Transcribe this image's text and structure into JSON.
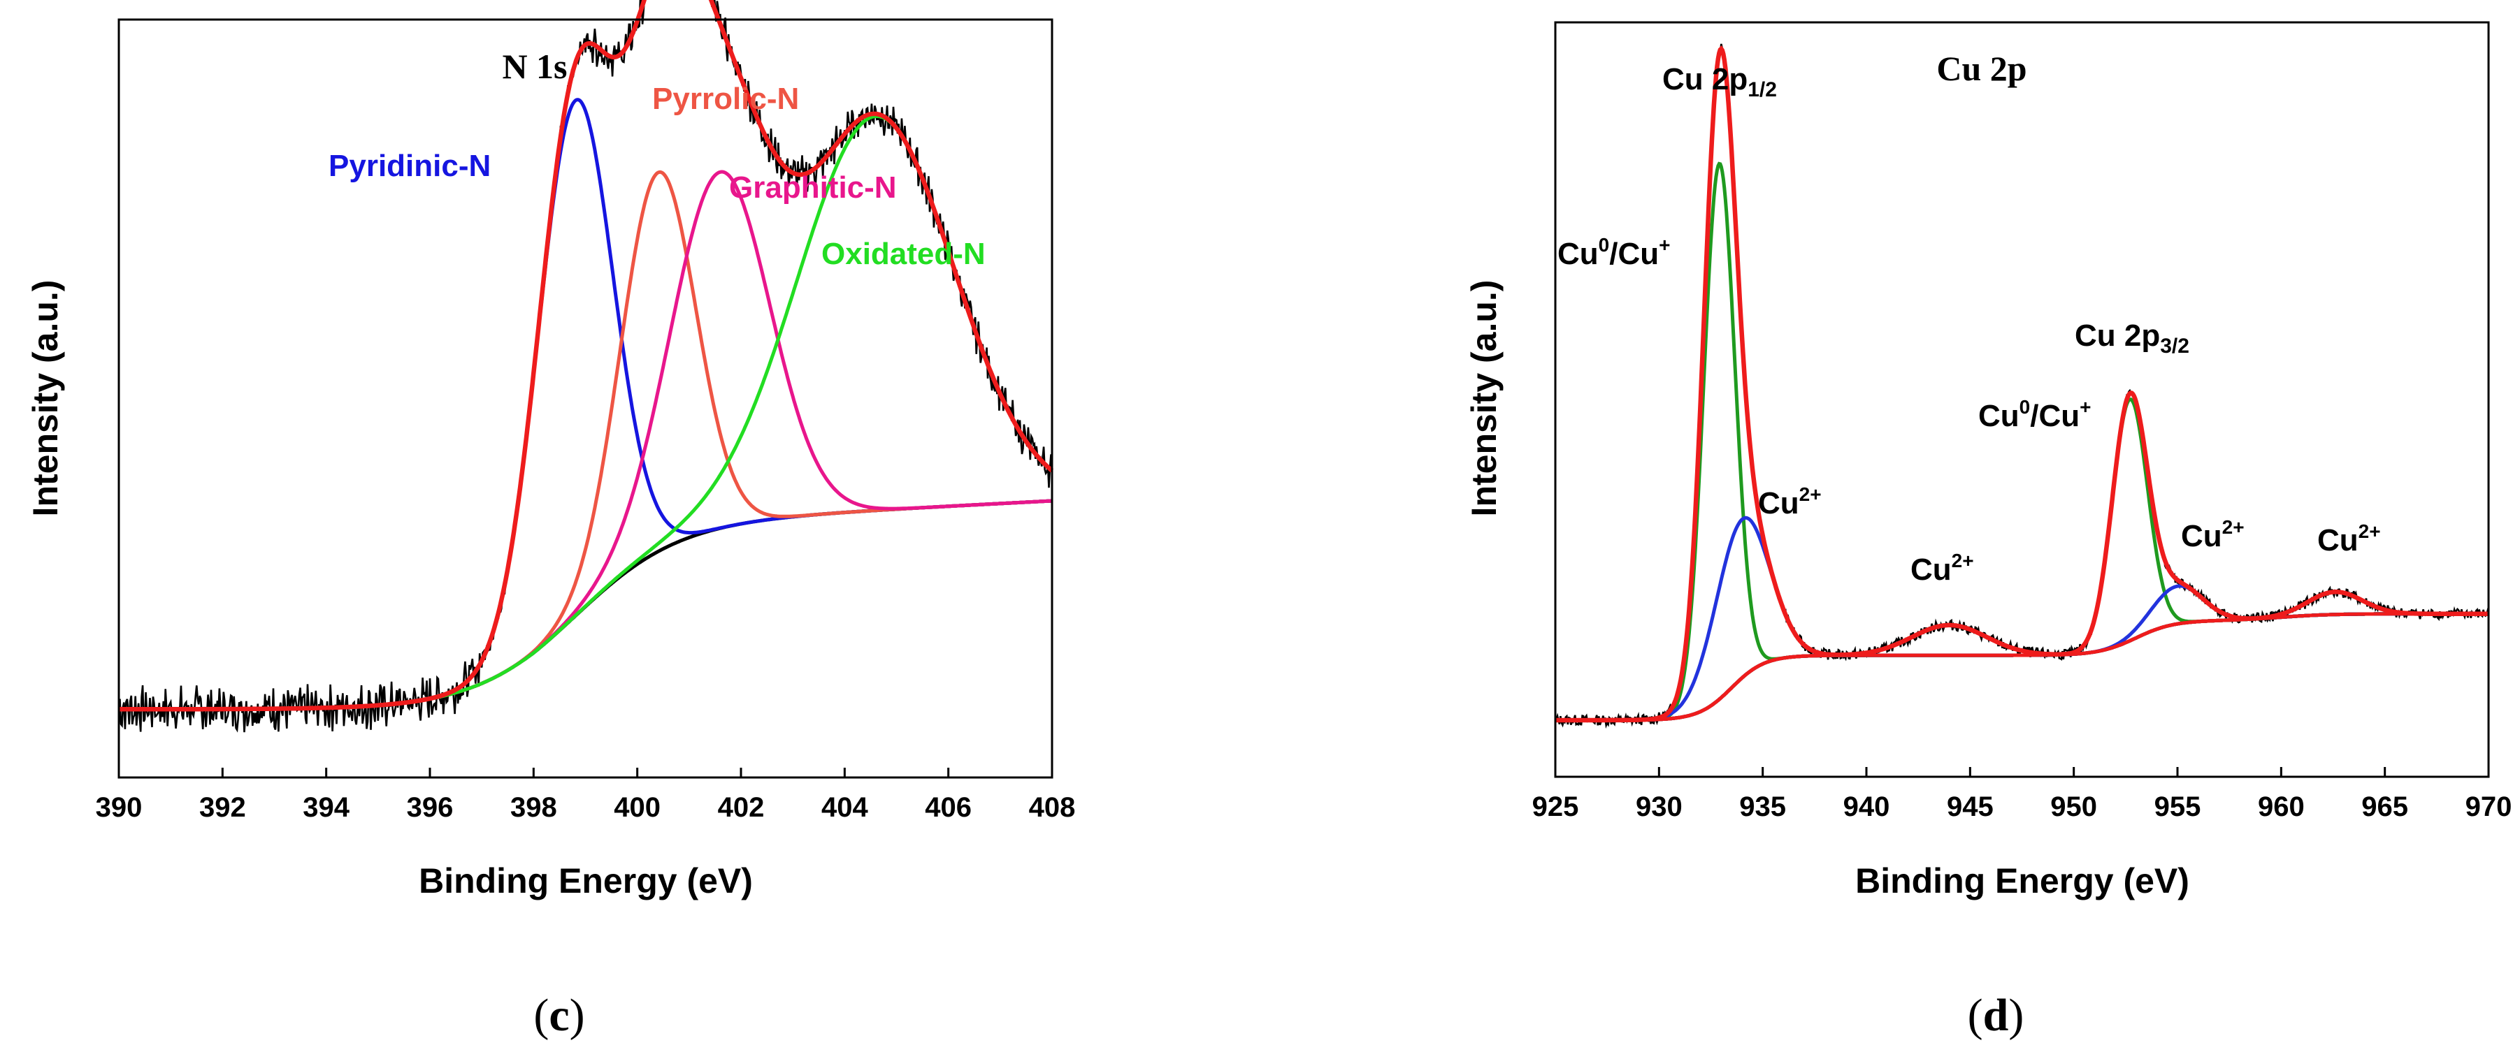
{
  "colors": {
    "raw": "#000000",
    "fit": "#ee1c1c",
    "background": "#000000",
    "blue": "#1515e0",
    "orange": "#ee5544",
    "pink": "#e8168c",
    "lime": "#22dd22",
    "green": "#1f9a1f",
    "blue2": "#2233dd"
  },
  "chart_data": [
    {
      "type": "line",
      "panel_label": "c",
      "title": "N 1s",
      "xlabel": "Binding Energy (eV)",
      "ylabel": "Intensity (a.u.)",
      "xlim": [
        390,
        408
      ],
      "ylim": [
        0,
        100
      ],
      "xticks": [
        390,
        392,
        394,
        396,
        398,
        400,
        402,
        404,
        406,
        408
      ],
      "series": [
        {
          "name": "Pyridinic-N",
          "color": "#1515e0",
          "center": 398.8,
          "sigma": 0.72,
          "height": 68
        },
        {
          "name": "Pyrrolic-N",
          "color": "#ee5544",
          "center": 400.4,
          "sigma": 0.72,
          "height": 50
        },
        {
          "name": "Graphitic-N",
          "color": "#e8168c",
          "center": 401.6,
          "sigma": 0.95,
          "height": 47
        },
        {
          "name": "Oxidated-N",
          "color": "#22dd22",
          "center": 404.6,
          "sigma": 1.5,
          "height": 52
        }
      ],
      "background_curve": {
        "step_center": 398.8,
        "step_width": 1.0,
        "step_height": 24,
        "slope": 3.5,
        "base": 9
      },
      "annotations": [
        {
          "text": "Pyridinic-N",
          "color": "#1515e0"
        },
        {
          "text": "Pyrrolic-N",
          "color": "#ee5544"
        },
        {
          "text": "Graphitic-N",
          "color": "#e8168c"
        },
        {
          "text": "Oxidated-N",
          "color": "#22dd22"
        }
      ]
    },
    {
      "type": "line",
      "panel_label": "d",
      "title": "Cu 2p",
      "xlabel": "Binding Energy (eV)",
      "ylabel": "Intensity (a.u.)",
      "xlim": [
        925,
        970
      ],
      "ylim": [
        0,
        100
      ],
      "xticks": [
        925,
        930,
        935,
        940,
        945,
        950,
        955,
        960,
        965,
        970
      ],
      "series": [
        {
          "name": "Cu0/Cu+ 2p1/2",
          "color": "#1f9a1f",
          "center": 932.9,
          "sigma": 0.75,
          "height": 71
        },
        {
          "name": "Cu2+ 2p1/2",
          "color": "#2233dd",
          "center": 934.0,
          "sigma": 1.3,
          "height": 21
        },
        {
          "name": "Cu0/Cu+ 2p3/2",
          "color": "#1f9a1f",
          "center": 952.7,
          "sigma": 0.85,
          "height": 32
        },
        {
          "name": "Cu2+ 2p3/2",
          "color": "#2233dd",
          "center": 955.0,
          "sigma": 1.2,
          "height": 5
        },
        {
          "name": "Cu2+ satellite 1",
          "color": "#ee1c1c",
          "center": 944.0,
          "sigma": 1.8,
          "height": 4
        },
        {
          "name": "Cu2+ satellite 2",
          "color": "#ee1c1c",
          "center": 962.6,
          "sigma": 1.3,
          "height": 3
        }
      ],
      "background_curve": {
        "b0": 7.5,
        "b1": 8.6,
        "step1": 933.5,
        "s2": 4.6,
        "step2": 953,
        "c2": 0.9,
        "step3": 960
      },
      "annotations": [
        {
          "base": "Cu 2p",
          "sub": "1/2",
          "sup": ""
        },
        {
          "base": "Cu",
          "sup": "0",
          "mid": "/Cu",
          "sup2": "+"
        },
        {
          "base": "Cu",
          "sup": "2+"
        },
        {
          "base": "Cu",
          "sup": "2+"
        },
        {
          "base": "Cu 2p",
          "sub": "3/2",
          "sup": ""
        },
        {
          "base": "Cu",
          "sup": "0",
          "mid": "/Cu",
          "sup2": "+"
        },
        {
          "base": "Cu",
          "sup": "2+"
        },
        {
          "base": "Cu",
          "sup": "2+"
        }
      ]
    }
  ]
}
